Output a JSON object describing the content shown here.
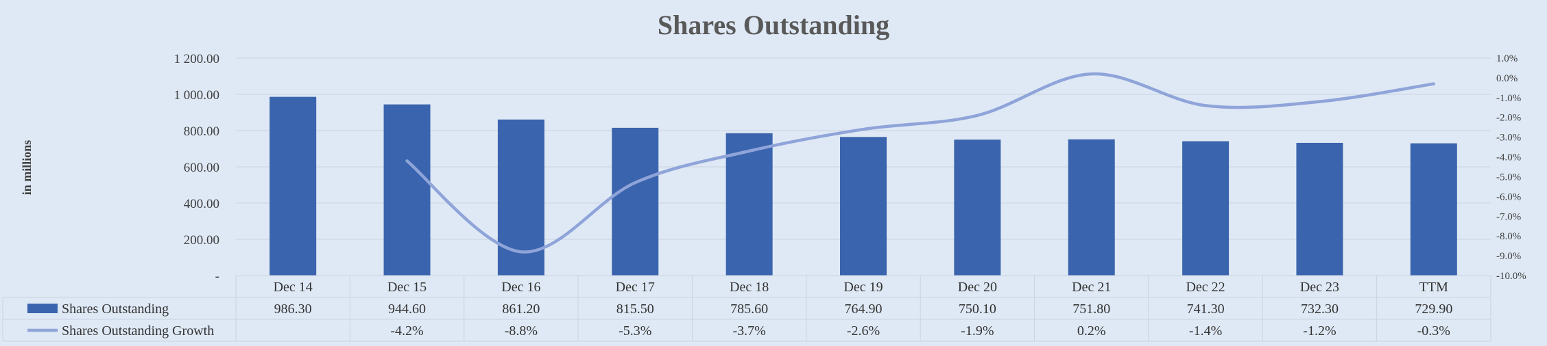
{
  "chart_data": {
    "type": "bar",
    "title": "Shares Outstanding",
    "ylabel": "in millions",
    "categories": [
      "Dec 14",
      "Dec 15",
      "Dec 16",
      "Dec 17",
      "Dec 18",
      "Dec 19",
      "Dec 20",
      "Dec 21",
      "Dec 22",
      "Dec 23",
      "TTM"
    ],
    "series": [
      {
        "name": "Shares Outstanding",
        "type": "bar",
        "axis": "left",
        "color": "#3a64ad",
        "values": [
          986.3,
          944.6,
          861.2,
          815.5,
          785.6,
          764.9,
          750.1,
          751.8,
          741.3,
          732.3,
          729.9
        ],
        "labels": [
          "986.30",
          "944.60",
          "861.20",
          "815.50",
          "785.60",
          "764.90",
          "750.10",
          "751.80",
          "741.30",
          "732.30",
          "729.90"
        ]
      },
      {
        "name": "Shares Outstanding Growth",
        "type": "line",
        "axis": "right",
        "color": "#8fa4d9",
        "values": [
          null,
          -4.2,
          -8.8,
          -5.3,
          -3.7,
          -2.6,
          -1.9,
          0.2,
          -1.4,
          -1.2,
          -0.3
        ],
        "labels": [
          "",
          "-4.2%",
          "-8.8%",
          "-5.3%",
          "-3.7%",
          "-2.6%",
          "-1.9%",
          "0.2%",
          "-1.4%",
          "-1.2%",
          "-0.3%"
        ]
      }
    ],
    "y_left": {
      "ylim": [
        0,
        1200
      ],
      "ticks": [
        0,
        200,
        400,
        600,
        800,
        1000,
        1200
      ],
      "tick_labels": [
        "-",
        "200.00",
        "400.00",
        "600.00",
        "800.00",
        "1 000.00",
        "1 200.00"
      ]
    },
    "y_right": {
      "ylim": [
        -10,
        1
      ],
      "ticks": [
        1,
        0,
        -1,
        -2,
        -3,
        -4,
        -5,
        -6,
        -7,
        -8,
        -9,
        -10
      ],
      "tick_labels": [
        "1.0%",
        "0.0%",
        "-1.0%",
        "-2.0%",
        "-3.0%",
        "-4.0%",
        "-5.0%",
        "-6.0%",
        "-7.0%",
        "-8.0%",
        "-9.0%",
        "-10.0%"
      ]
    },
    "grid": true,
    "legend": "data-table-bottom"
  }
}
